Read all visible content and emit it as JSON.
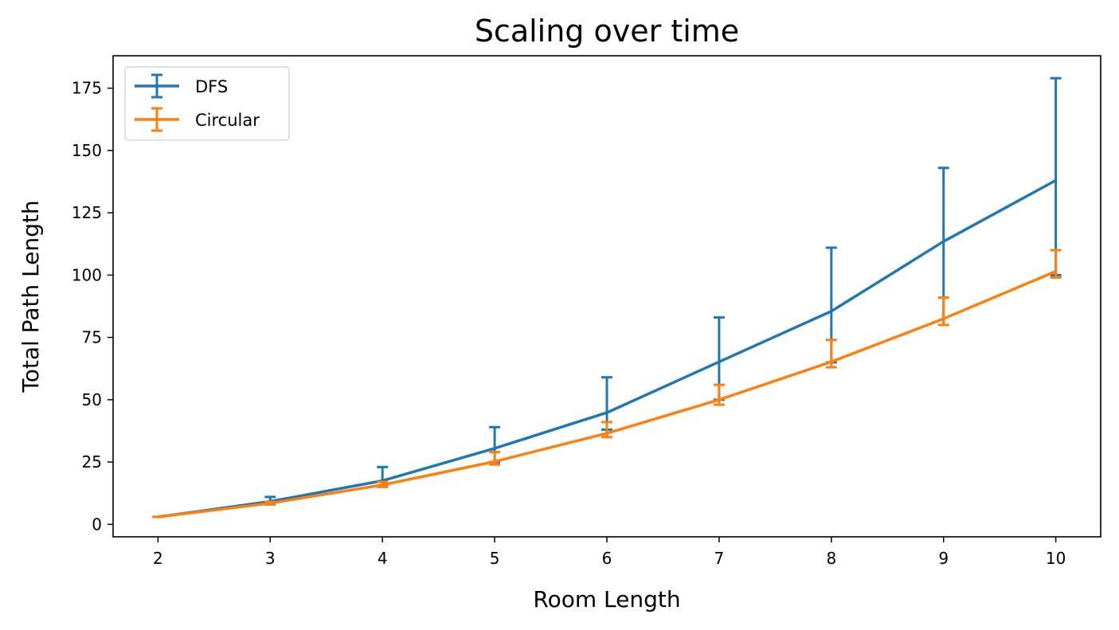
{
  "chart_data": {
    "type": "line",
    "title": "Scaling over time",
    "xlabel": "Room Length",
    "ylabel": "Total Path Length",
    "x": [
      2,
      3,
      4,
      5,
      6,
      7,
      8,
      9,
      10
    ],
    "xlim": [
      1.6,
      10.4
    ],
    "ylim": [
      -5,
      188
    ],
    "xticks": [
      2,
      3,
      4,
      5,
      6,
      7,
      8,
      9,
      10
    ],
    "yticks": [
      0,
      25,
      50,
      75,
      100,
      125,
      150,
      175
    ],
    "grid": false,
    "legend_position": "top-left",
    "series": [
      {
        "name": "DFS",
        "color": "#1f77b4",
        "values": [
          3,
          9.2,
          17.5,
          30.5,
          44.8,
          65.2,
          85.5,
          113.5,
          138
        ],
        "error_low": [
          3,
          8,
          15.5,
          25,
          38,
          50,
          65,
          80,
          100
        ],
        "error_high": [
          3,
          11,
          23,
          39,
          59,
          83,
          111,
          143,
          179
        ]
      },
      {
        "name": "Circular",
        "color": "#ff7f0e",
        "values": [
          3,
          8.5,
          15.8,
          25.2,
          36.5,
          50,
          65.2,
          82.5,
          101.5
        ],
        "error_low": [
          3,
          8,
          15,
          24,
          35,
          48,
          63,
          80,
          99
        ],
        "error_high": [
          3,
          9,
          17,
          29,
          41,
          56,
          74,
          91,
          110
        ]
      }
    ]
  }
}
